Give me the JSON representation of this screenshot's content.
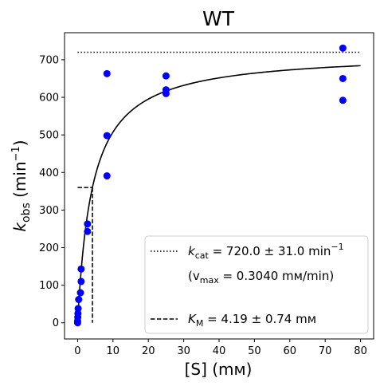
{
  "chart_data": {
    "type": "scatter",
    "title": "WT",
    "xlabel": "[S] (mм)",
    "ylabel_main": "k",
    "ylabel_sub": "obs",
    "ylabel_unit_open": " (min",
    "ylabel_unit_sup": "−1",
    "ylabel_unit_close": ")",
    "xlim": [
      -3.7,
      83.7
    ],
    "ylim": [
      -43,
      772
    ],
    "xticks": [
      0,
      10,
      20,
      30,
      40,
      50,
      60,
      70,
      80
    ],
    "yticks": [
      0,
      100,
      200,
      300,
      400,
      500,
      600,
      700
    ],
    "point_color": "#0000ff",
    "points": [
      {
        "x": 0.0,
        "y": 0
      },
      {
        "x": 0.0,
        "y": 5
      },
      {
        "x": 0.05,
        "y": 15
      },
      {
        "x": 0.1,
        "y": 25
      },
      {
        "x": 0.15,
        "y": 38
      },
      {
        "x": 0.3,
        "y": 62
      },
      {
        "x": 0.8,
        "y": 80
      },
      {
        "x": 1.0,
        "y": 110
      },
      {
        "x": 1.0,
        "y": 143
      },
      {
        "x": 2.8,
        "y": 243
      },
      {
        "x": 2.8,
        "y": 263
      },
      {
        "x": 8.3,
        "y": 391
      },
      {
        "x": 8.3,
        "y": 498
      },
      {
        "x": 8.3,
        "y": 663
      },
      {
        "x": 25.0,
        "y": 610
      },
      {
        "x": 25.0,
        "y": 620
      },
      {
        "x": 25.0,
        "y": 657
      },
      {
        "x": 75.0,
        "y": 592
      },
      {
        "x": 75.0,
        "y": 650
      },
      {
        "x": 75.0,
        "y": 731
      }
    ],
    "fit": {
      "kcat": 720.0,
      "km": 4.19,
      "x_range": [
        0,
        80
      ]
    },
    "kcat_line": {
      "y": 720,
      "x_range": [
        0,
        80
      ]
    },
    "km_lines": {
      "km": 4.19,
      "half": 360
    },
    "legend": {
      "position": "lower-right",
      "kcat_label": "k",
      "kcat_sub": "cat",
      "kcat_value": " = 720.0 ± 31.0 min",
      "kcat_unit_sup": "−1",
      "vmax_open": "(v",
      "vmax_sub": "max",
      "vmax_value": " = 0.3040 mм/min)",
      "km_label": "K",
      "km_sub": "M",
      "km_value": " = 4.19 ± 0.74 mм"
    }
  }
}
